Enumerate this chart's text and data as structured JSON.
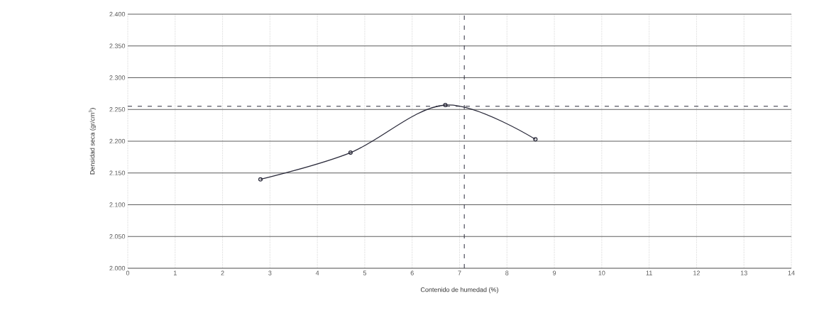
{
  "chart_data": {
    "type": "line",
    "xlabel": "Contenido de humedad (%)",
    "ylabel": "Densidad seca (gr/cm$^{3}$)",
    "x": [
      2.8,
      4.7,
      6.7,
      8.6
    ],
    "series": [
      {
        "color": "#2a2a3a",
        "values": [
          2.14,
          2.182,
          2.257,
          2.203
        ]
      }
    ],
    "xlim": [
      0,
      14
    ],
    "xticks": [
      0,
      1,
      2,
      3,
      4,
      5,
      6,
      7,
      8,
      9,
      10,
      11,
      12,
      13,
      14
    ],
    "ylim": [
      2.0,
      2.4
    ],
    "yticks": [
      {
        "value": 2.0,
        "label": "2.000"
      },
      {
        "value": 2.05,
        "label": "2.050"
      },
      {
        "value": 2.1,
        "label": "2.100"
      },
      {
        "value": 2.15,
        "label": "2.150"
      },
      {
        "value": 2.2,
        "label": "2.200"
      },
      {
        "value": 2.25,
        "label": "2.250"
      },
      {
        "value": 2.3,
        "label": "2.300"
      },
      {
        "value": 2.35,
        "label": "2.350"
      },
      {
        "value": 2.4,
        "label": "2.400"
      }
    ],
    "grid": true,
    "marker": "circle",
    "line_style": "solid",
    "ref_lines": [
      {
        "axis": "y",
        "value": 2.255,
        "line_style": "dashed",
        "color": "#2a2a3a"
      },
      {
        "axis": "x",
        "value": 7.1,
        "line_style": "dashed",
        "color": "#2a2a3a"
      }
    ]
  }
}
